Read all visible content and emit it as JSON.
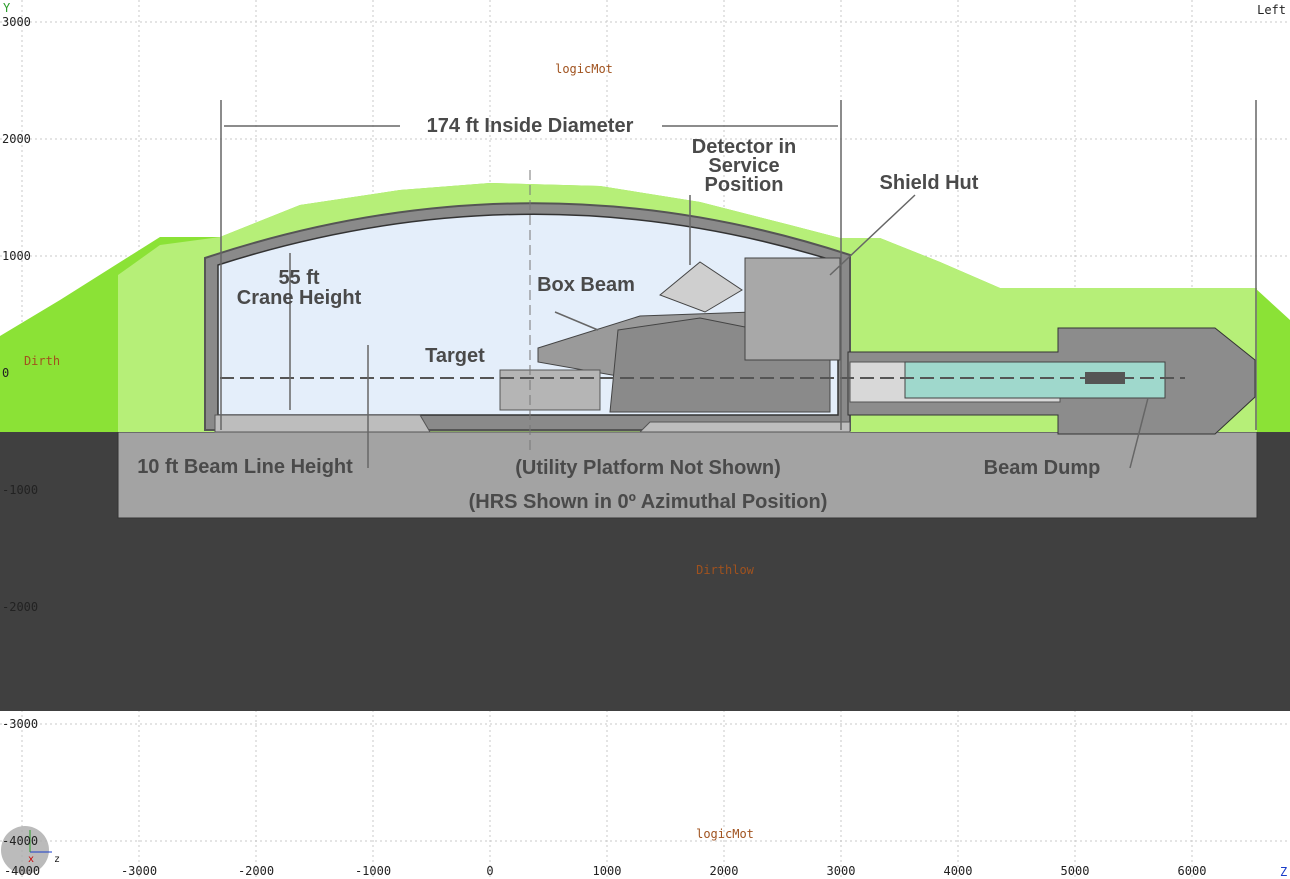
{
  "view": {
    "axis_y": "Y",
    "axis_z": "Z",
    "view_name": "Left",
    "gizmo_x": "x",
    "gizmo_z": "z"
  },
  "x_ticks": [
    -4000,
    -3000,
    -2000,
    -1000,
    0,
    1000,
    2000,
    3000,
    4000,
    5000,
    6000
  ],
  "y_ticks": [
    3000,
    2000,
    1000,
    0,
    -1000,
    -2000,
    -3000,
    -4000
  ],
  "volumes": {
    "top": "logicMot",
    "hill": "Dirth",
    "ground": "Dirthlow",
    "bottom": "logicMot"
  },
  "annotations": {
    "diameter": "174 ft Inside Diameter",
    "detector": [
      "Detector in",
      "Service",
      "Position"
    ],
    "shield_hut": "Shield Hut",
    "crane": [
      "55 ft",
      "Crane Height"
    ],
    "box_beam": "Box Beam",
    "target": "Target",
    "beam_line": "10 ft Beam Line Height",
    "utility": "(Utility Platform Not Shown)",
    "hrs": "(HRS Shown in 0º Azimuthal Position)",
    "beam_dump": "Beam Dump"
  }
}
